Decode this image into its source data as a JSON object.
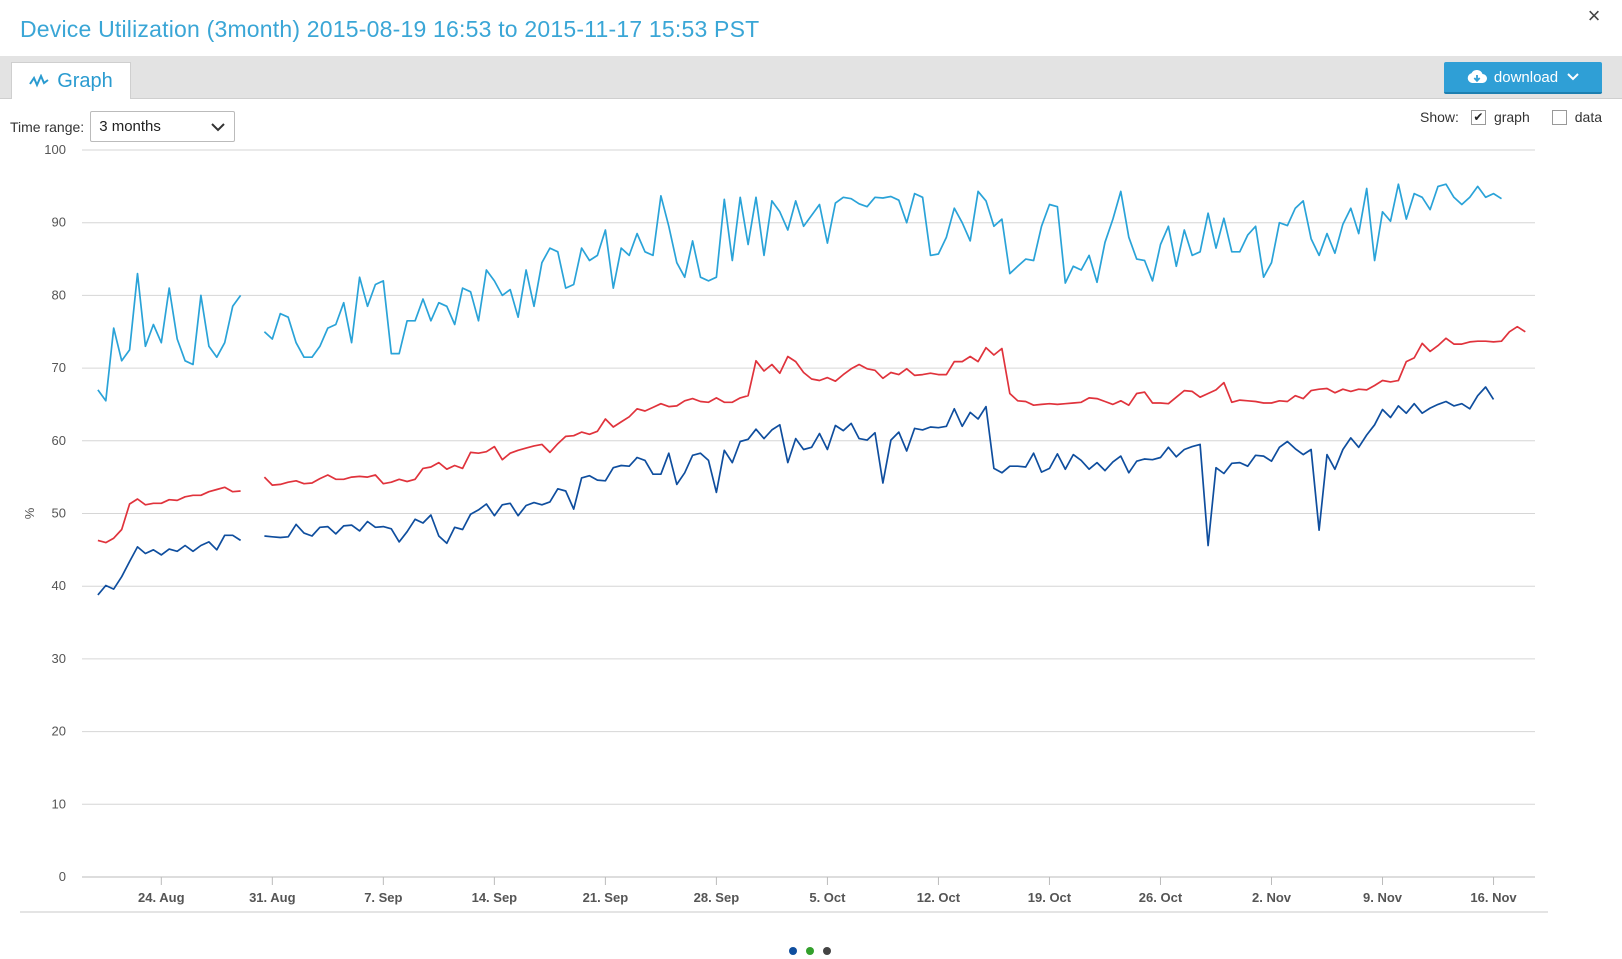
{
  "header": {
    "title": "Device Utilization (3month) 2015-08-19 16:53 to 2015-11-17 15:53 PST",
    "close_label": "×"
  },
  "tabs": [
    {
      "label": "Graph",
      "icon": "line-chart-icon"
    }
  ],
  "download": {
    "label": "download",
    "icon": "cloud-download-icon"
  },
  "controls": {
    "time_range_label": "Time range:",
    "time_range_value": "3 months",
    "show_label": "Show:",
    "show_options": [
      {
        "label": "graph",
        "checked": true
      },
      {
        "label": "data",
        "checked": false
      }
    ]
  },
  "colors": {
    "accent": "#3aa6d6",
    "series_1": "#2aa3d8",
    "series_2": "#e0333c",
    "series_3": "#0f4e9e"
  },
  "chart_data": {
    "type": "line",
    "title": "",
    "xlabel": "",
    "ylabel": "%",
    "ylim": [
      0,
      100
    ],
    "yticks": [
      0,
      10,
      20,
      30,
      40,
      50,
      60,
      70,
      80,
      90,
      100
    ],
    "x_start": "2015-08-20",
    "x_step_days": 0.5,
    "xtick_labels": [
      "24. Aug",
      "31. Aug",
      "7. Sep",
      "14. Sep",
      "21. Sep",
      "28. Sep",
      "5. Oct",
      "12. Oct",
      "19. Oct",
      "26. Oct",
      "2. Nov",
      "9. Nov",
      "16. Nov"
    ],
    "xtick_dates": [
      "2015-08-24",
      "2015-08-31",
      "2015-09-07",
      "2015-09-14",
      "2015-09-21",
      "2015-09-28",
      "2015-10-05",
      "2015-10-12",
      "2015-10-19",
      "2015-10-26",
      "2015-11-02",
      "2015-11-09",
      "2015-11-16"
    ],
    "grid": true,
    "legend": "pager-dots-bottom",
    "series": [
      {
        "color": "#2aa3d8",
        "values": [
          67,
          65.5,
          75.5,
          71,
          72.5,
          83,
          73,
          76,
          73.5,
          81,
          74,
          71,
          70.5,
          80,
          73,
          71.5,
          73.5,
          78.5,
          80,
          null,
          null,
          75,
          74,
          77.5,
          77,
          73.5,
          71.5,
          71.5,
          73,
          75.5,
          76,
          79,
          73.5,
          82.5,
          78.5,
          81.5,
          82,
          72,
          72,
          76.5,
          76.5,
          79.5,
          76.5,
          79,
          78.5,
          76,
          81,
          80.5,
          76.5,
          83.5,
          82,
          80,
          80.8,
          77,
          83.5,
          78.5,
          84.5,
          86.5,
          86,
          81,
          81.5,
          86.5,
          84.8,
          85.5,
          89,
          81,
          86.5,
          85.5,
          88.5,
          86,
          85.5,
          93.7,
          89.5,
          84.5,
          82.5,
          87.5,
          82.5,
          82,
          82.5,
          93.2,
          84.8,
          93.5,
          87,
          93.5,
          85.5,
          93,
          91.5,
          89,
          93,
          89.5,
          91,
          92.5,
          87.2,
          92.7,
          93.5,
          93.3,
          92.6,
          92.2,
          93.5,
          93.4,
          93.6,
          93.1,
          90,
          94,
          93.5,
          85.5,
          85.7,
          88,
          92,
          90,
          87.5,
          94.3,
          93,
          89.5,
          90.5,
          83,
          84,
          85,
          84.8,
          89.5,
          92.5,
          92.2,
          81.7,
          84,
          83.5,
          85.5,
          81.8,
          87.3,
          90.5,
          94.3,
          88,
          85,
          84.8,
          82,
          87,
          89.5,
          84,
          89,
          85.5,
          86,
          91.3,
          86.5,
          90.6,
          86,
          86,
          88.3,
          89.5,
          82.5,
          84.5,
          90,
          89.6,
          92,
          93,
          87.8,
          85.5,
          88.5,
          85.8,
          89.8,
          92,
          88.5,
          94.7,
          84.8,
          91.5,
          90.2,
          95.3,
          90.5,
          94,
          93.5,
          91.8,
          95,
          95.3,
          93.5,
          92.5,
          93.5,
          95,
          93.5,
          94,
          93.3
        ]
      },
      {
        "color": "#e0333c",
        "values": [
          46.3,
          46,
          46.6,
          47.8,
          51.3,
          52,
          51.2,
          51.4,
          51.4,
          51.9,
          51.8,
          52.3,
          52.5,
          52.5,
          53,
          53.3,
          53.6,
          53,
          53.1,
          null,
          null,
          55,
          53.9,
          54,
          54.3,
          54.5,
          54.1,
          54.2,
          54.8,
          55.3,
          54.7,
          54.7,
          55,
          55.1,
          55,
          55.3,
          54.1,
          54.3,
          54.7,
          54.4,
          54.7,
          56.2,
          56.4,
          57,
          56.1,
          56.6,
          56.2,
          58.4,
          58.3,
          58.5,
          59.2,
          57.4,
          58.3,
          58.7,
          59,
          59.3,
          59.5,
          58.4,
          59.6,
          60.6,
          60.7,
          61.2,
          60.9,
          61.3,
          63,
          61.9,
          62.6,
          63.3,
          64.4,
          64.1,
          64.6,
          65.1,
          64.7,
          64.8,
          65.5,
          65.8,
          65.4,
          65.3,
          65.9,
          65.3,
          65.3,
          65.9,
          66.2,
          71,
          69.6,
          70.5,
          69.3,
          71.6,
          70.9,
          69.4,
          68.5,
          68.3,
          68.7,
          68.2,
          69.1,
          69.9,
          70.5,
          69.9,
          69.7,
          68.6,
          69.4,
          69.1,
          69.9,
          69,
          69.1,
          69.3,
          69.1,
          69.1,
          70.9,
          70.9,
          71.6,
          70.9,
          72.8,
          71.8,
          72.7,
          66.5,
          65.5,
          65.4,
          64.9,
          65,
          65.1,
          65,
          65.1,
          65.2,
          65.3,
          65.9,
          65.8,
          65.4,
          65,
          65.5,
          64.9,
          66.5,
          66.7,
          65.2,
          65.2,
          65.1,
          66,
          66.9,
          66.8,
          66,
          66.5,
          67,
          68,
          65.3,
          65.6,
          65.5,
          65.4,
          65.2,
          65.2,
          65.5,
          65.4,
          66.2,
          65.8,
          66.9,
          67.1,
          67.2,
          66.6,
          67.1,
          66.8,
          67.1,
          67,
          67.6,
          68.3,
          68.1,
          68.3,
          70.9,
          71.4,
          73.4,
          72.3,
          73.1,
          74.1,
          73.3,
          73.3,
          73.6,
          73.7,
          73.7,
          73.6,
          73.7,
          75,
          75.7,
          75
        ]
      },
      {
        "color": "#0f4e9e",
        "values": [
          38.8,
          40.1,
          39.6,
          41.3,
          43.4,
          45.4,
          44.5,
          45,
          44.3,
          45.1,
          44.8,
          45.6,
          44.8,
          45.6,
          46.1,
          45,
          47,
          47,
          46.3,
          null,
          null,
          46.9,
          46.8,
          46.7,
          46.8,
          48.5,
          47.3,
          46.9,
          48.1,
          48.2,
          47.2,
          48.3,
          48.4,
          47.6,
          48.9,
          48.1,
          48.2,
          47.9,
          46.1,
          47.5,
          49.2,
          48.7,
          49.8,
          46.9,
          45.9,
          48.1,
          47.8,
          49.9,
          50.5,
          51.3,
          49.7,
          51.2,
          51.4,
          49.7,
          51.1,
          51.5,
          51.2,
          51.6,
          53.4,
          53.1,
          50.6,
          54.9,
          55.2,
          54.6,
          54.5,
          56.3,
          56.6,
          56.5,
          57.7,
          57.3,
          55.4,
          55.4,
          58.3,
          54,
          55.6,
          58,
          58.3,
          57.3,
          52.9,
          58.7,
          57,
          59.9,
          60.2,
          61.6,
          60.3,
          61.5,
          62.2,
          57,
          60.3,
          58.8,
          59.1,
          61,
          58.8,
          62.1,
          61.4,
          62.4,
          60.3,
          60.1,
          61.1,
          54.2,
          60.1,
          61.2,
          58.6,
          61.7,
          61.5,
          61.9,
          61.8,
          62,
          64.4,
          62,
          63.9,
          63,
          64.7,
          56.2,
          55.6,
          56.5,
          56.5,
          56.4,
          58.3,
          55.7,
          56.2,
          58.2,
          56.1,
          58.1,
          57.3,
          56.1,
          57,
          55.9,
          57.1,
          57.9,
          55.6,
          57.2,
          57.5,
          57.4,
          57.7,
          59.1,
          57.8,
          58.8,
          59.2,
          59.5,
          45.6,
          56.3,
          55.5,
          56.9,
          57,
          56.5,
          58,
          57.9,
          57.2,
          59.1,
          59.9,
          58.9,
          58.1,
          58.8,
          47.7,
          58.1,
          56.1,
          58.8,
          60.4,
          59.1,
          60.8,
          62.2,
          64.3,
          63.2,
          64.8,
          63.8,
          65.1,
          63.8,
          64.5,
          65,
          65.4,
          64.8,
          65.1,
          64.4,
          66.2,
          67.4,
          65.7
        ]
      }
    ]
  },
  "pager": {
    "dots": [
      {
        "color": "#0f4e9e"
      },
      {
        "color": "#33a02c"
      },
      {
        "color": "#444444"
      }
    ]
  }
}
